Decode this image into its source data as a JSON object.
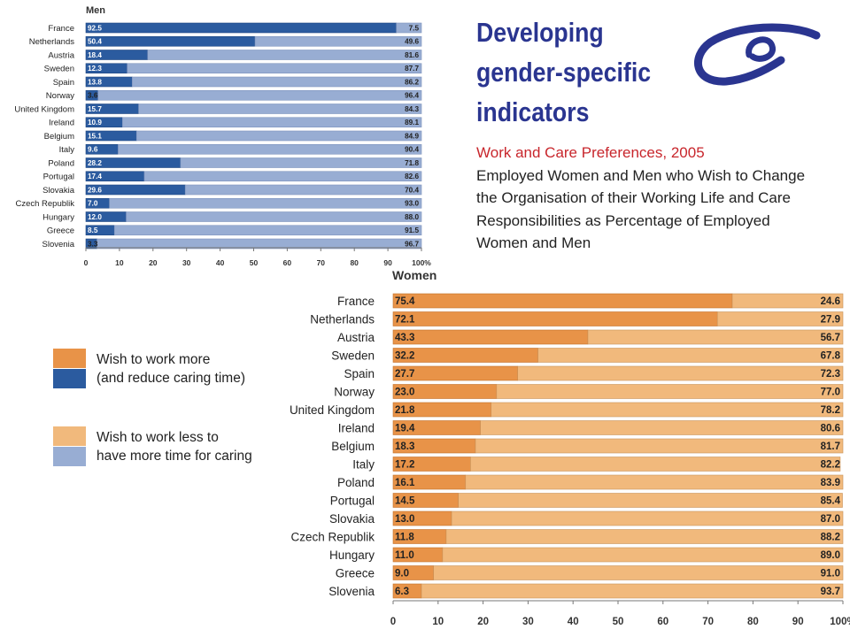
{
  "header": {
    "title_lines": [
      "Developing",
      "gender-specific",
      "indicators"
    ],
    "subtitle": "Work and Care Preferences, 2005",
    "description": "Employed Women and Men who Wish to Change the Organisation of their Working Life and Care Responsibilities as Percentage of Employed Women and Men"
  },
  "logo": {
    "icon": "council-of-europe-logo-icon",
    "color": "#2a3590"
  },
  "legend": {
    "items": [
      {
        "label": "Wish to work more\n(and reduce caring time)",
        "colors": [
          "#e89348",
          "#2b5b9f"
        ]
      },
      {
        "label": "Wish to work less to\nhave more time for caring",
        "colors": [
          "#f1b97c",
          "#98add3"
        ]
      }
    ]
  },
  "chart_data": [
    {
      "type": "bar",
      "orientation": "horizontal",
      "stacked": true,
      "title": "Men",
      "categories": [
        "France",
        "Netherlands",
        "Austria",
        "Sweden",
        "Spain",
        "Norway",
        "United Kingdom",
        "Ireland",
        "Belgium",
        "Italy",
        "Poland",
        "Portugal",
        "Slovakia",
        "Czech Republik",
        "Hungary",
        "Greece",
        "Slovenia"
      ],
      "series": [
        {
          "values": [
            92.5,
            50.4,
            18.4,
            12.3,
            13.8,
            3.6,
            15.7,
            10.9,
            15.1,
            9.6,
            28.2,
            17.4,
            29.6,
            7.0,
            12.0,
            8.5,
            3.3
          ],
          "color": "#2b5b9f"
        },
        {
          "values": [
            7.5,
            49.6,
            81.6,
            87.7,
            86.2,
            96.4,
            84.3,
            89.1,
            84.9,
            90.4,
            71.8,
            82.6,
            70.4,
            93.0,
            88.0,
            91.5,
            96.7
          ],
          "color": "#98add3"
        }
      ],
      "x_ticks": [
        "0",
        "10",
        "20",
        "30",
        "40",
        "50",
        "60",
        "70",
        "80",
        "90",
        "100%"
      ],
      "xlim": [
        0,
        100
      ]
    },
    {
      "type": "bar",
      "orientation": "horizontal",
      "stacked": true,
      "title": "Women",
      "categories": [
        "France",
        "Netherlands",
        "Austria",
        "Sweden",
        "Spain",
        "Norway",
        "United Kingdom",
        "Ireland",
        "Belgium",
        "Italy",
        "Poland",
        "Portugal",
        "Slovakia",
        "Czech Republik",
        "Hungary",
        "Greece",
        "Slovenia"
      ],
      "series": [
        {
          "values": [
            75.4,
            72.1,
            43.3,
            32.2,
            27.7,
            23.0,
            21.8,
            19.4,
            18.3,
            17.2,
            16.1,
            14.5,
            13.0,
            11.8,
            11.0,
            9.0,
            6.3
          ],
          "color": "#e89348"
        },
        {
          "values": [
            24.6,
            27.9,
            56.7,
            67.8,
            72.3,
            77.0,
            78.2,
            80.6,
            81.7,
            82.2,
            83.9,
            85.4,
            87.0,
            88.2,
            89.0,
            91.0,
            93.7
          ],
          "color": "#f1b97c"
        }
      ],
      "x_ticks": [
        "0",
        "10",
        "20",
        "30",
        "40",
        "50",
        "60",
        "70",
        "80",
        "90",
        "100%"
      ],
      "xlim": [
        0,
        100
      ]
    }
  ]
}
